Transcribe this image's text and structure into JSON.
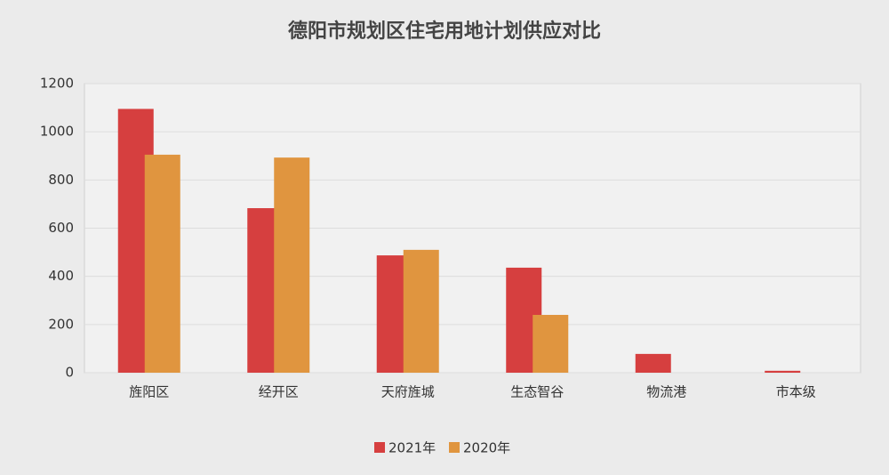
{
  "chart_data": {
    "type": "bar",
    "title": "德阳市规划区住宅用地计划供应对比",
    "categories": [
      "旌阳区",
      "经开区",
      "天府旌城",
      "生态智谷",
      "物流港",
      "市本级"
    ],
    "series": [
      {
        "name": "2021年",
        "color": "#d63f3f",
        "values": [
          1095,
          683,
          487,
          436,
          78,
          8
        ]
      },
      {
        "name": "2020年",
        "color": "#e0953f",
        "values": [
          905,
          893,
          510,
          240,
          0,
          0
        ]
      }
    ],
    "ylim": [
      0,
      1200
    ],
    "yticks": [
      0,
      200,
      400,
      600,
      800,
      1000,
      1200
    ],
    "grid": true,
    "legend": "bottom"
  }
}
